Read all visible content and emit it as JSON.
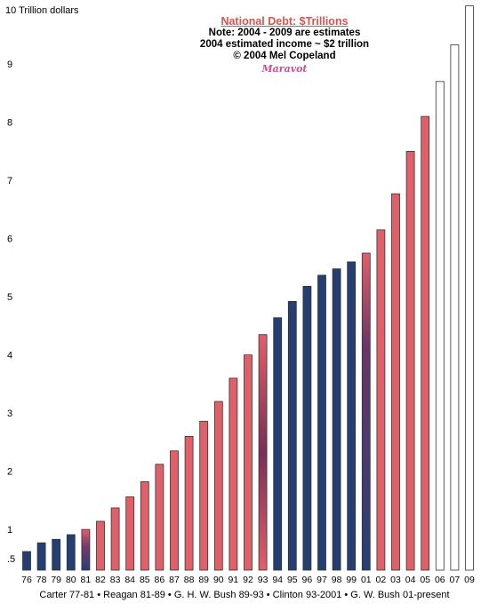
{
  "title": {
    "main": "National Debt: $Trillions",
    "note1": "Note: 2004 - 2009 are estimates",
    "note2": "2004 estimated income ~ $2 trillion",
    "copyright": "© 2004 Mel Copeland",
    "signature": "Maravot"
  },
  "footer": "Carter 77-81 • Reagan 81-89 • G. H. W. Bush 89-93 • Clinton 93-2001 • G. W. Bush 01-present",
  "colors": {
    "dem": "#263f73",
    "rep": "#e0606a",
    "estimate": "#ffffff",
    "outline": "#333333"
  },
  "chart_data": {
    "type": "bar",
    "ylabel": "10 Trillion dollars",
    "ylim": [
      0.3,
      10
    ],
    "y_ticks": [
      ".5",
      "1",
      "2",
      "3",
      "4",
      "5",
      "6",
      "7",
      "8",
      "9"
    ],
    "y_tick_values": [
      0.5,
      1,
      2,
      3,
      4,
      5,
      6,
      7,
      8,
      9
    ],
    "grid": false,
    "categories": [
      "76",
      "78",
      "79",
      "80",
      "81",
      "82",
      "83",
      "84",
      "85",
      "86",
      "87",
      "88",
      "89",
      "90",
      "91",
      "92",
      "93",
      "94",
      "95",
      "96",
      "97",
      "98",
      "99",
      "01",
      "02",
      "03",
      "04",
      "05",
      "06",
      "07",
      "09"
    ],
    "values": [
      0.62,
      0.77,
      0.83,
      0.91,
      1.0,
      1.14,
      1.37,
      1.56,
      1.82,
      2.12,
      2.35,
      2.6,
      2.86,
      3.2,
      3.6,
      4.0,
      4.35,
      4.64,
      4.92,
      5.18,
      5.37,
      5.48,
      5.6,
      5.75,
      6.15,
      6.77,
      7.5,
      8.1,
      8.7,
      9.33,
      10.0
    ],
    "party": [
      "D",
      "D",
      "D",
      "D",
      "D-R",
      "R",
      "R",
      "R",
      "R",
      "R",
      "R",
      "R",
      "R",
      "R",
      "R",
      "R",
      "R-D",
      "D",
      "D",
      "D",
      "D",
      "D",
      "D",
      "D-R",
      "R",
      "R",
      "R",
      "R",
      "E",
      "E",
      "E"
    ]
  }
}
